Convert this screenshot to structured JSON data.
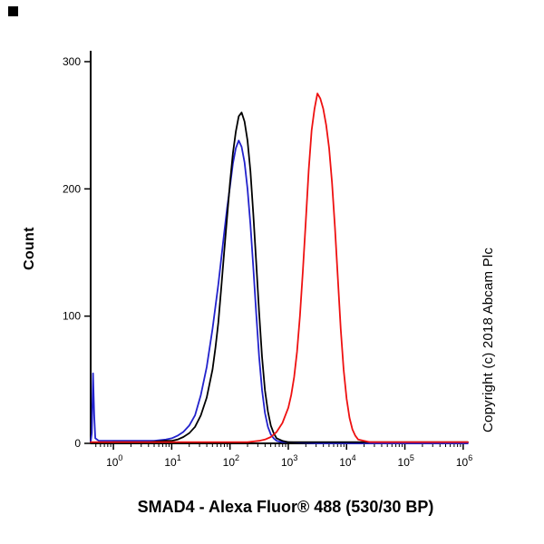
{
  "figure": {
    "title": "SMAD4 - Alexa Fluor® 488 (530/30 BP)",
    "y_axis_label": "Count",
    "copyright": "Copyright (c) 2018 Abcam Plc"
  },
  "chart_data": {
    "type": "line",
    "subtype": "flow-cytometry-histogram",
    "title": "SMAD4 - Alexa Fluor® 488 (530/30 BP)",
    "xlabel": "",
    "ylabel": "Count",
    "x_scale": "log10",
    "x_range_log10": [
      -0.39,
      6.08
    ],
    "ylim": [
      0,
      300
    ],
    "y_ticks": [
      0,
      100,
      200,
      300
    ],
    "x_major_tick_exponents": [
      0,
      1,
      2,
      3,
      4,
      5,
      6
    ],
    "grid": false,
    "legend": "none",
    "axis_color": "#000000",
    "series": [
      {
        "name": "blue-curve",
        "color": "#2222cc",
        "peak": {
          "x_log10": 2.15,
          "count": 238
        },
        "points": [
          [
            -0.39,
            1
          ],
          [
            -0.37,
            8
          ],
          [
            -0.35,
            55
          ],
          [
            -0.33,
            22
          ],
          [
            -0.31,
            4
          ],
          [
            -0.25,
            2
          ],
          [
            -0.1,
            2
          ],
          [
            0.1,
            2
          ],
          [
            0.3,
            2
          ],
          [
            0.5,
            2
          ],
          [
            0.7,
            2
          ],
          [
            0.9,
            3
          ],
          [
            1.0,
            4
          ],
          [
            1.1,
            6
          ],
          [
            1.2,
            9
          ],
          [
            1.3,
            14
          ],
          [
            1.4,
            22
          ],
          [
            1.5,
            38
          ],
          [
            1.6,
            60
          ],
          [
            1.7,
            90
          ],
          [
            1.8,
            125
          ],
          [
            1.9,
            165
          ],
          [
            1.95,
            185
          ],
          [
            2.0,
            202
          ],
          [
            2.05,
            220
          ],
          [
            2.1,
            232
          ],
          [
            2.15,
            238
          ],
          [
            2.2,
            233
          ],
          [
            2.25,
            221
          ],
          [
            2.3,
            200
          ],
          [
            2.35,
            172
          ],
          [
            2.4,
            138
          ],
          [
            2.45,
            102
          ],
          [
            2.5,
            68
          ],
          [
            2.55,
            42
          ],
          [
            2.6,
            24
          ],
          [
            2.65,
            13
          ],
          [
            2.7,
            7
          ],
          [
            2.75,
            4
          ],
          [
            2.8,
            2
          ],
          [
            2.9,
            1
          ],
          [
            3.0,
            1
          ],
          [
            3.5,
            0
          ],
          [
            4.0,
            0
          ],
          [
            4.5,
            0
          ],
          [
            5.0,
            0
          ],
          [
            5.5,
            0
          ],
          [
            6.08,
            0
          ]
        ]
      },
      {
        "name": "black-curve",
        "color": "#000000",
        "peak": {
          "x_log10": 2.2,
          "count": 260
        },
        "points": [
          [
            -0.39,
            0
          ],
          [
            -0.2,
            0
          ],
          [
            0.0,
            1
          ],
          [
            0.3,
            1
          ],
          [
            0.6,
            1
          ],
          [
            0.9,
            2
          ],
          [
            1.0,
            2
          ],
          [
            1.1,
            3
          ],
          [
            1.2,
            5
          ],
          [
            1.3,
            8
          ],
          [
            1.4,
            13
          ],
          [
            1.5,
            22
          ],
          [
            1.6,
            36
          ],
          [
            1.7,
            58
          ],
          [
            1.75,
            75
          ],
          [
            1.8,
            95
          ],
          [
            1.85,
            122
          ],
          [
            1.9,
            150
          ],
          [
            1.95,
            178
          ],
          [
            2.0,
            205
          ],
          [
            2.05,
            228
          ],
          [
            2.1,
            245
          ],
          [
            2.15,
            257
          ],
          [
            2.2,
            260
          ],
          [
            2.25,
            253
          ],
          [
            2.3,
            238
          ],
          [
            2.35,
            214
          ],
          [
            2.4,
            180
          ],
          [
            2.45,
            142
          ],
          [
            2.5,
            103
          ],
          [
            2.55,
            68
          ],
          [
            2.6,
            42
          ],
          [
            2.65,
            25
          ],
          [
            2.7,
            14
          ],
          [
            2.75,
            8
          ],
          [
            2.8,
            4
          ],
          [
            2.9,
            2
          ],
          [
            3.0,
            1
          ],
          [
            3.5,
            1
          ],
          [
            4.0,
            1
          ],
          [
            4.5,
            1
          ],
          [
            5.0,
            1
          ],
          [
            5.5,
            1
          ],
          [
            6.08,
            1
          ]
        ]
      },
      {
        "name": "red-curve",
        "color": "#ee1111",
        "peak": {
          "x_log10": 3.5,
          "count": 275
        },
        "points": [
          [
            -0.39,
            1
          ],
          [
            0.0,
            1
          ],
          [
            0.5,
            1
          ],
          [
            1.0,
            1
          ],
          [
            1.5,
            1
          ],
          [
            2.0,
            1
          ],
          [
            2.3,
            1
          ],
          [
            2.5,
            2
          ],
          [
            2.6,
            3
          ],
          [
            2.7,
            5
          ],
          [
            2.8,
            9
          ],
          [
            2.9,
            16
          ],
          [
            3.0,
            28
          ],
          [
            3.05,
            38
          ],
          [
            3.1,
            52
          ],
          [
            3.15,
            72
          ],
          [
            3.2,
            100
          ],
          [
            3.25,
            135
          ],
          [
            3.3,
            175
          ],
          [
            3.35,
            215
          ],
          [
            3.4,
            246
          ],
          [
            3.45,
            263
          ],
          [
            3.5,
            275
          ],
          [
            3.55,
            271
          ],
          [
            3.6,
            263
          ],
          [
            3.65,
            250
          ],
          [
            3.7,
            232
          ],
          [
            3.75,
            205
          ],
          [
            3.8,
            170
          ],
          [
            3.85,
            130
          ],
          [
            3.9,
            90
          ],
          [
            3.95,
            58
          ],
          [
            4.0,
            35
          ],
          [
            4.05,
            20
          ],
          [
            4.1,
            11
          ],
          [
            4.15,
            6
          ],
          [
            4.2,
            3
          ],
          [
            4.3,
            2
          ],
          [
            4.4,
            1
          ],
          [
            4.6,
            1
          ],
          [
            5.0,
            1
          ],
          [
            5.5,
            1
          ],
          [
            6.08,
            1
          ]
        ]
      }
    ]
  }
}
